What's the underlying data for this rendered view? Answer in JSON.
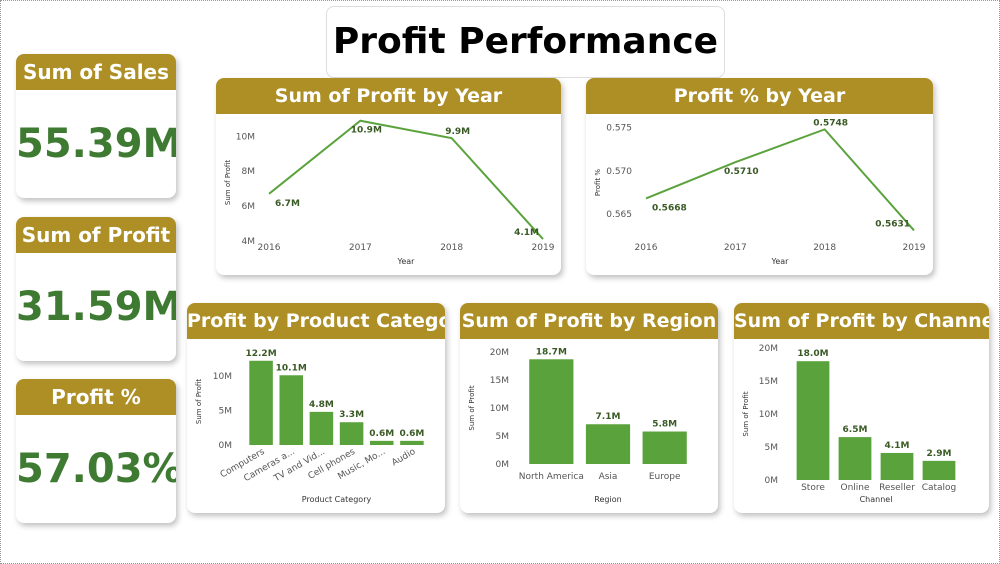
{
  "title": "Profit Performance",
  "kpis": [
    {
      "label": "Sum of Sales",
      "value": "55.39M"
    },
    {
      "label": "Sum of Profit",
      "value": "31.59M"
    },
    {
      "label": "Profit %",
      "value": "57.03%"
    }
  ],
  "chart_data": [
    {
      "type": "line",
      "title": "Sum of Profit by Year",
      "x_label": "Year",
      "y_label": "Sum of Profit",
      "categories": [
        "2016",
        "2017",
        "2018",
        "2019"
      ],
      "values": [
        6.7,
        10.9,
        9.9,
        4.1
      ],
      "value_labels": [
        "6.7M",
        "10.9M",
        "9.9M",
        "4.1M"
      ],
      "color": "#5aa33c",
      "ylim": [
        3.7,
        11
      ],
      "yticks": [
        {
          "value": 4,
          "label": "4M"
        },
        {
          "value": 6,
          "label": "6M"
        },
        {
          "value": 8,
          "label": "8M"
        },
        {
          "value": 10,
          "label": "10M"
        }
      ]
    },
    {
      "type": "line",
      "title": "Profit % by Year",
      "x_label": "Year",
      "y_label": "Profit %",
      "categories": [
        "2016",
        "2017",
        "2018",
        "2019"
      ],
      "values": [
        0.5668,
        0.571,
        0.5748,
        0.5631
      ],
      "value_labels": [
        "0.5668",
        "0.5710",
        "0.5748",
        "0.5631"
      ],
      "color": "#5aa33c",
      "ylim": [
        0.5613,
        0.576
      ],
      "yticks": [
        0.565,
        {
          "value": 0.57,
          "label": "0.570"
        },
        0.575
      ]
    },
    {
      "type": "bar",
      "title": "Profit by Product Category",
      "x_label": "Product Category",
      "y_label": "Sum of Profit",
      "categories": [
        "Computers",
        "Cameras a...",
        "TV and Vid...",
        "Cell phones",
        "Music, Mo...",
        "Audio"
      ],
      "values": [
        12.2,
        10.1,
        4.8,
        3.3,
        0.6,
        0.6
      ],
      "value_labels": [
        "12.2M",
        "10.1M",
        "4.8M",
        "3.3M",
        "0.6M",
        "0.6M"
      ],
      "color": "#5aa33c",
      "ylim": [
        0,
        12.6
      ],
      "yticks": [
        {
          "value": 0,
          "label": "0M"
        },
        {
          "value": 5,
          "label": "5M"
        },
        {
          "value": 10,
          "label": "10M"
        }
      ]
    },
    {
      "type": "bar",
      "title": "Sum of Profit by Region",
      "x_label": "Region",
      "y_label": "Sum of Profit",
      "categories": [
        "North America",
        "Asia",
        "Europe"
      ],
      "values": [
        18.7,
        7.1,
        5.8
      ],
      "value_labels": [
        "18.7M",
        "7.1M",
        "5.8M"
      ],
      "color": "#5aa33c",
      "ylim": [
        0,
        20
      ],
      "yticks": [
        {
          "value": 0,
          "label": "0M"
        },
        {
          "value": 5,
          "label": "5M"
        },
        {
          "value": 10,
          "label": "10M"
        },
        {
          "value": 15,
          "label": "15M"
        },
        {
          "value": 20,
          "label": "20M"
        }
      ]
    },
    {
      "type": "bar",
      "title": "Sum of Profit by Channel",
      "x_label": "Channel",
      "y_label": "Sum of Profit",
      "categories": [
        "Store",
        "Online",
        "Reseller",
        "Catalog"
      ],
      "values": [
        18.0,
        6.5,
        4.1,
        2.9
      ],
      "value_labels": [
        "18.0M",
        "6.5M",
        "4.1M",
        "2.9M"
      ],
      "color": "#5aa33c",
      "ylim": [
        0,
        20
      ],
      "yticks": [
        {
          "value": 0,
          "label": "0M"
        },
        {
          "value": 5,
          "label": "5M"
        },
        {
          "value": 10,
          "label": "10M"
        },
        {
          "value": 15,
          "label": "15M"
        },
        {
          "value": 20,
          "label": "20M"
        }
      ]
    }
  ]
}
